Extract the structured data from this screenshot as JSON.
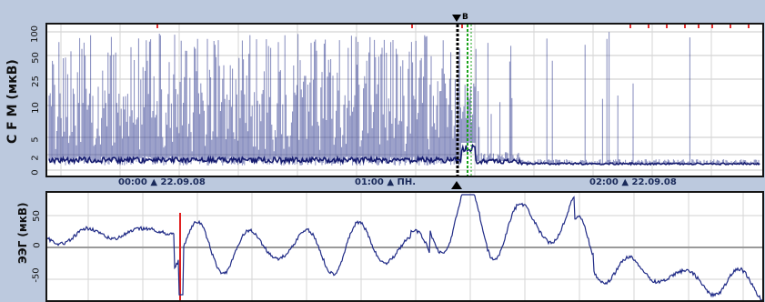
{
  "top_panel": {
    "axis_label": "C F M (мкВ)",
    "ticks": [
      "100",
      "50",
      "25",
      "10",
      "5",
      "2",
      "0"
    ],
    "cursor_label": "B",
    "trace_color": "#1f2a86",
    "marker_color": "#e03030"
  },
  "time_axis": {
    "labels": [
      "00:00 ▲ 22.09.08",
      "01:00 ▲ ПН.",
      "02:00 ▲ 22.09.08"
    ]
  },
  "bottom_panel": {
    "axis_label": "ЭЭГ (мкВ)",
    "ticks": [
      "50",
      "0",
      "-50"
    ],
    "trace_color": "#1f2a86",
    "marker_color": "#e02020"
  }
}
